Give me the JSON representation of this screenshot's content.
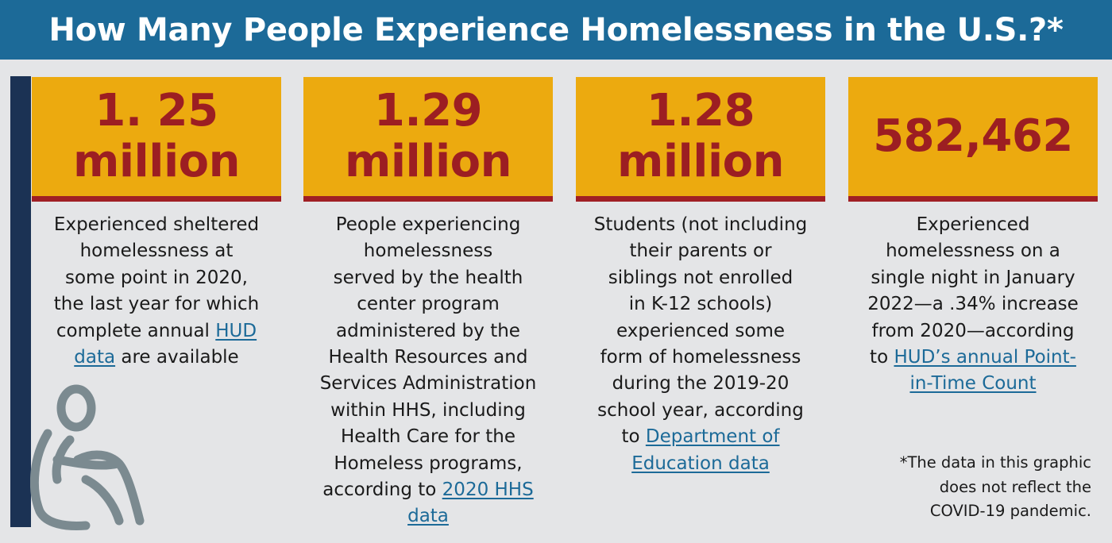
{
  "header": {
    "title": "How Many People Experience Homelessness in the U.S.?*"
  },
  "colors": {
    "header_bg": "#1c6a98",
    "stat_box_bg": "#ecaa0f",
    "stat_text": "#9c1e22",
    "stat_underline": "#a01f24",
    "sidebar": "#1b3254",
    "link": "#1c6a98",
    "page_bg": "#e4e5e7",
    "icon": "#7b8a90"
  },
  "stats": [
    {
      "value_line1": "1. 25",
      "value_line2": "million",
      "desc_lines": [
        "Experienced sheltered",
        "homelessness at",
        "some point in 2020,",
        "the last year for which",
        "complete annual "
      ],
      "link_part1": "HUD",
      "link_part2": "data",
      "desc_after_link": " are available"
    },
    {
      "value_line1": "1.29",
      "value_line2": "million",
      "desc_lines": [
        "People experiencing",
        "homelessness",
        "served by the health",
        "center program",
        "administered by the",
        "Health Resources and",
        "Services Administration",
        "within HHS, including",
        "Health Care for the",
        "Homeless programs,",
        "according to "
      ],
      "link_part1": "2020 HHS",
      "link_part2": "data"
    },
    {
      "value_line1": "1.28",
      "value_line2": "million",
      "desc_lines": [
        "Students (not including",
        "their parents or",
        "siblings not enrolled",
        "in K-12 schools)",
        "experienced some",
        "form of homelessness",
        "during the 2019-20",
        "school year, according",
        "to "
      ],
      "link_part1": "Department of",
      "link_part2": "Education data"
    },
    {
      "value_line1": "582,462",
      "desc_lines": [
        "Experienced",
        "homelessness on a",
        "single night in January",
        "2022—a .34% increase",
        "from 2020—according",
        "to "
      ],
      "link_part1": "HUD’s annual Point-",
      "link_part2": "in-Time Count"
    }
  ],
  "footnote": {
    "line1": "*The data in this graphic",
    "line2": "does not reflect the",
    "line3": "COVID-19 pandemic."
  },
  "icon": "seated-person-icon"
}
